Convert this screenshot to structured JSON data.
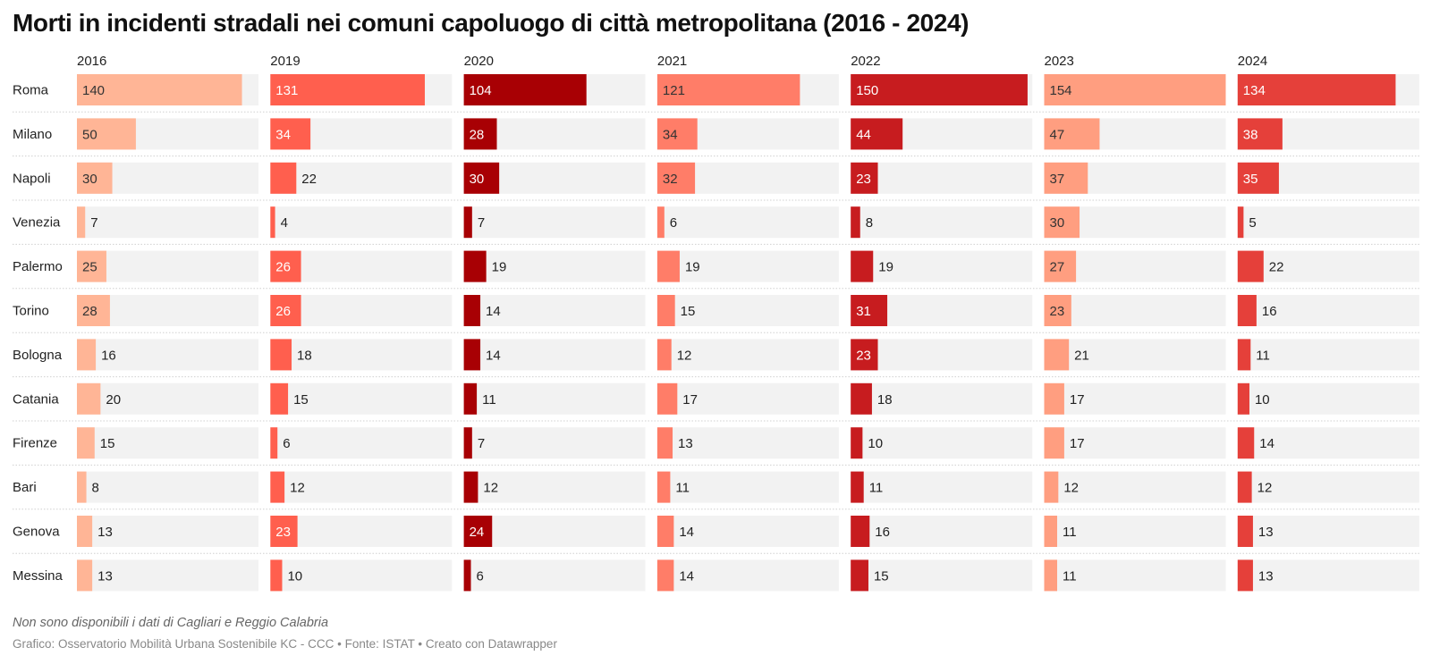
{
  "title": "Morti in incidenti stradali nei comuni capoluogo di città metropolitana (2016 - 2024)",
  "note": "Non sono disponibili i dati di Cagliari e Reggio Calabria",
  "credit": "Grafico: Osservatorio Mobilità Urbana Sostenibile KC - CCC • Fonte: ISTAT • Creato con Datawrapper",
  "chart_data": {
    "type": "bar",
    "layout": "small-multiples horizontal bars, one panel per year",
    "categories": [
      "Roma",
      "Milano",
      "Napoli",
      "Venezia",
      "Palermo",
      "Torino",
      "Bologna",
      "Catania",
      "Firenze",
      "Bari",
      "Genova",
      "Messina"
    ],
    "xlim": [
      0,
      154
    ],
    "background_bar_color": "#f2f2f2",
    "series": [
      {
        "name": "2016",
        "color": "#ffb596",
        "values": [
          140,
          50,
          30,
          7,
          25,
          28,
          16,
          20,
          15,
          8,
          13,
          13
        ]
      },
      {
        "name": "2019",
        "color": "#ff5f4e",
        "values": [
          131,
          34,
          22,
          4,
          26,
          26,
          18,
          15,
          6,
          12,
          23,
          10
        ]
      },
      {
        "name": "2020",
        "color": "#a80004",
        "values": [
          104,
          28,
          30,
          7,
          19,
          14,
          14,
          11,
          7,
          12,
          24,
          6
        ]
      },
      {
        "name": "2021",
        "color": "#ff7d68",
        "values": [
          121,
          34,
          32,
          6,
          19,
          15,
          12,
          17,
          13,
          11,
          14,
          14
        ]
      },
      {
        "name": "2022",
        "color": "#c71c1f",
        "values": [
          150,
          44,
          23,
          8,
          19,
          31,
          23,
          18,
          10,
          11,
          16,
          15
        ]
      },
      {
        "name": "2023",
        "color": "#ff9e80",
        "values": [
          154,
          47,
          37,
          30,
          27,
          23,
          21,
          17,
          17,
          12,
          11,
          11
        ]
      },
      {
        "name": "2024",
        "color": "#e5403a",
        "values": [
          134,
          38,
          35,
          5,
          22,
          16,
          11,
          10,
          14,
          12,
          13,
          13
        ]
      }
    ]
  }
}
